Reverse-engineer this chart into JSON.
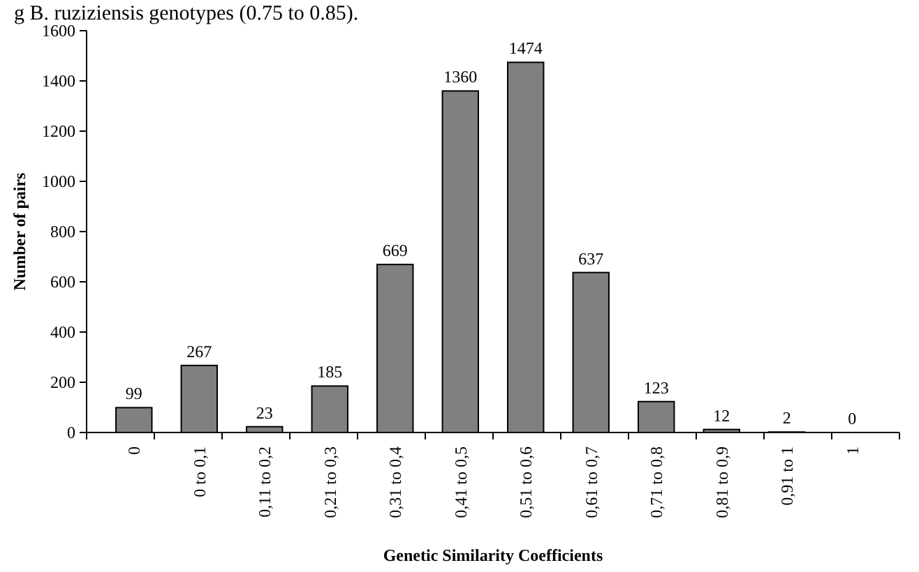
{
  "chart_data": {
    "type": "bar",
    "annotations": [
      "g B. ruziziensis genotypes (0.75 to 0.85)."
    ],
    "xlabel": "Genetic Similarity Coefficients",
    "ylabel": "Number of pairs",
    "categories": [
      "0",
      "0 to 0,1",
      "0,11 to 0,2",
      "0,21 to 0,3",
      "0,31 to 0,4",
      "0,41 to 0,5",
      "0,51 to 0,6",
      "0,61 to 0,7",
      "0,71 to 0,8",
      "0,81 to 0,9",
      "0,91 to 1",
      "1"
    ],
    "values": [
      99,
      267,
      23,
      185,
      669,
      1360,
      1474,
      637,
      123,
      12,
      2,
      0
    ],
    "color": "#808080",
    "data_labels": true,
    "ylim": [
      0,
      1600
    ],
    "yticks": [
      0,
      200,
      400,
      600,
      800,
      1000,
      1200,
      1400,
      1600
    ]
  }
}
